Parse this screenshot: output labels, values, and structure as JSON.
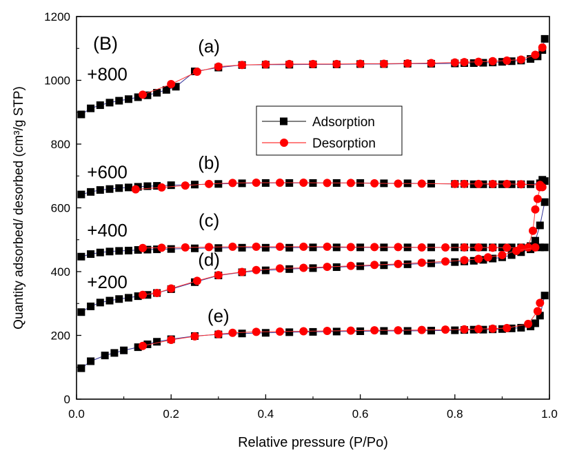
{
  "chart_data": {
    "type": "line",
    "panel_label": "(B)",
    "xlabel": "Relative pressure (P/Po)",
    "ylabel": "Quantity adsorbed/ desorbed (cm³/g STP)",
    "xlim": [
      0.0,
      1.0
    ],
    "ylim": [
      0,
      1200
    ],
    "xticks": [
      "0.0",
      "0.2",
      "0.4",
      "0.6",
      "0.8",
      "1.0"
    ],
    "xtick_values": [
      0.0,
      0.2,
      0.4,
      0.6,
      0.8,
      1.0
    ],
    "yticks": [
      "0",
      "200",
      "400",
      "600",
      "800",
      "1000",
      "1200"
    ],
    "ytick_values": [
      0,
      200,
      400,
      600,
      800,
      1000,
      1200
    ],
    "grid": false,
    "legend": {
      "placement": "center",
      "entries": [
        {
          "label": "Adsorption",
          "color": "#000000",
          "marker": "square"
        },
        {
          "label": "Desorption",
          "color": "#ff0000",
          "marker": "circle"
        }
      ]
    },
    "annotations": [
      {
        "text": "(a)",
        "x": 0.28,
        "y": 1088
      },
      {
        "text": "(b)",
        "x": 0.28,
        "y": 722
      },
      {
        "text": "(c)",
        "x": 0.28,
        "y": 542
      },
      {
        "text": "(d)",
        "x": 0.28,
        "y": 418
      },
      {
        "text": "(e)",
        "x": 0.3,
        "y": 242
      },
      {
        "text": "+800",
        "x": 0.065,
        "y": 1000
      },
      {
        "text": "+600",
        "x": 0.065,
        "y": 693
      },
      {
        "text": "+400",
        "x": 0.065,
        "y": 510
      },
      {
        "text": "+200",
        "x": 0.065,
        "y": 348
      }
    ],
    "series": [
      {
        "group": "(a)",
        "kind": "Adsorption",
        "x": [
          0.01,
          0.03,
          0.05,
          0.07,
          0.09,
          0.11,
          0.13,
          0.15,
          0.17,
          0.19,
          0.21,
          0.25,
          0.3,
          0.35,
          0.4,
          0.45,
          0.5,
          0.55,
          0.6,
          0.65,
          0.7,
          0.75,
          0.8,
          0.82,
          0.84,
          0.86,
          0.88,
          0.9,
          0.92,
          0.94,
          0.96,
          0.975,
          0.985,
          0.99
        ],
        "y": [
          893,
          912,
          922,
          930,
          936,
          941,
          947,
          953,
          961,
          970,
          980,
          1028,
          1040,
          1048,
          1049,
          1049,
          1050,
          1050,
          1051,
          1051,
          1052,
          1052,
          1053,
          1054,
          1054,
          1055,
          1056,
          1058,
          1060,
          1062,
          1067,
          1075,
          1095,
          1130
        ]
      },
      {
        "group": "(a)",
        "kind": "Desorption",
        "x": [
          0.985,
          0.97,
          0.94,
          0.91,
          0.88,
          0.85,
          0.82,
          0.8,
          0.75,
          0.7,
          0.65,
          0.6,
          0.55,
          0.5,
          0.45,
          0.4,
          0.35,
          0.3,
          0.255,
          0.2,
          0.14
        ],
        "y": [
          1103,
          1080,
          1065,
          1062,
          1060,
          1058,
          1057,
          1056,
          1054,
          1053,
          1052,
          1052,
          1051,
          1051,
          1051,
          1050,
          1048,
          1043,
          1027,
          988,
          955
        ]
      },
      {
        "group": "(b)",
        "kind": "Adsorption",
        "x": [
          0.01,
          0.03,
          0.05,
          0.07,
          0.09,
          0.11,
          0.13,
          0.15,
          0.17,
          0.2,
          0.25,
          0.3,
          0.35,
          0.4,
          0.45,
          0.5,
          0.55,
          0.6,
          0.65,
          0.7,
          0.75,
          0.8,
          0.82,
          0.84,
          0.86,
          0.88,
          0.9,
          0.92,
          0.94,
          0.96,
          0.98,
          0.985,
          0.99
        ],
        "y": [
          642,
          650,
          656,
          659,
          662,
          664,
          666,
          668,
          669,
          671,
          673,
          675,
          677,
          678,
          678,
          678,
          678,
          678,
          677,
          677,
          676,
          675,
          675,
          674,
          674,
          674,
          674,
          674,
          674,
          674,
          677,
          688,
          684
        ]
      },
      {
        "group": "(b)",
        "kind": "Desorption",
        "x": [
          0.985,
          0.98,
          0.94,
          0.91,
          0.88,
          0.85,
          0.82,
          0.8,
          0.73,
          0.68,
          0.63,
          0.58,
          0.53,
          0.48,
          0.43,
          0.38,
          0.33,
          0.28,
          0.23,
          0.18,
          0.125
        ],
        "y": [
          665,
          672,
          674,
          675,
          675,
          675,
          675,
          675,
          676,
          676,
          677,
          678,
          678,
          679,
          679,
          679,
          678,
          675,
          670,
          664,
          658
        ]
      },
      {
        "group": "(c)",
        "kind": "Adsorption",
        "x": [
          0.01,
          0.03,
          0.05,
          0.07,
          0.09,
          0.11,
          0.13,
          0.15,
          0.17,
          0.2,
          0.25,
          0.3,
          0.35,
          0.4,
          0.45,
          0.5,
          0.55,
          0.6,
          0.65,
          0.7,
          0.75,
          0.8,
          0.82,
          0.84,
          0.86,
          0.88,
          0.9,
          0.92,
          0.94,
          0.96,
          0.97,
          0.98,
          0.99
        ],
        "y": [
          447,
          455,
          460,
          463,
          465,
          466,
          468,
          469,
          470,
          471,
          473,
          474,
          475,
          475,
          475,
          476,
          476,
          476,
          476,
          476,
          476,
          476,
          476,
          476,
          476,
          476,
          476,
          476,
          476,
          480,
          497,
          545,
          618
        ]
      },
      {
        "group": "(c)",
        "kind": "Desorption",
        "x": [
          0.98,
          0.975,
          0.97,
          0.965,
          0.955,
          0.94,
          0.91,
          0.88,
          0.85,
          0.82,
          0.78,
          0.73,
          0.68,
          0.63,
          0.58,
          0.53,
          0.48,
          0.43,
          0.38,
          0.33,
          0.28,
          0.23,
          0.18,
          0.14
        ],
        "y": [
          665,
          628,
          595,
          528,
          476,
          475,
          475,
          475,
          476,
          476,
          476,
          476,
          477,
          477,
          477,
          478,
          478,
          478,
          478,
          478,
          477,
          476,
          475,
          474
        ]
      },
      {
        "group": "(d)",
        "kind": "Adsorption",
        "x": [
          0.01,
          0.03,
          0.05,
          0.07,
          0.09,
          0.11,
          0.13,
          0.15,
          0.17,
          0.2,
          0.25,
          0.3,
          0.35,
          0.4,
          0.45,
          0.5,
          0.55,
          0.6,
          0.65,
          0.7,
          0.75,
          0.8,
          0.82,
          0.84,
          0.86,
          0.88,
          0.9,
          0.92,
          0.94,
          0.96,
          0.98,
          0.99
        ],
        "y": [
          273,
          291,
          303,
          309,
          314,
          318,
          323,
          327,
          333,
          345,
          367,
          388,
          398,
          404,
          408,
          411,
          414,
          417,
          420,
          423,
          426,
          430,
          432,
          434,
          437,
          441,
          445,
          452,
          461,
          470,
          476,
          476
        ]
      },
      {
        "group": "(d)",
        "kind": "Desorption",
        "x": [
          0.97,
          0.93,
          0.9,
          0.87,
          0.85,
          0.82,
          0.78,
          0.73,
          0.68,
          0.63,
          0.58,
          0.53,
          0.48,
          0.43,
          0.38,
          0.35,
          0.3,
          0.255,
          0.2,
          0.17,
          0.14
        ],
        "y": [
          476,
          465,
          452,
          445,
          440,
          436,
          432,
          428,
          424,
          421,
          418,
          415,
          412,
          410,
          405,
          399,
          389,
          371,
          347,
          333,
          327
        ]
      },
      {
        "group": "(e)",
        "kind": "Adsorption",
        "x": [
          0.01,
          0.03,
          0.06,
          0.08,
          0.1,
          0.13,
          0.15,
          0.17,
          0.2,
          0.25,
          0.3,
          0.35,
          0.4,
          0.45,
          0.5,
          0.55,
          0.6,
          0.65,
          0.7,
          0.75,
          0.8,
          0.82,
          0.84,
          0.86,
          0.88,
          0.9,
          0.92,
          0.94,
          0.96,
          0.97,
          0.98,
          0.99
        ],
        "y": [
          97,
          119,
          137,
          145,
          153,
          163,
          172,
          180,
          188,
          198,
          203,
          206,
          208,
          210,
          211,
          212,
          213,
          214,
          214,
          215,
          216,
          217,
          218,
          218,
          219,
          220,
          222,
          224,
          228,
          238,
          262,
          325
        ]
      },
      {
        "group": "(e)",
        "kind": "Desorption",
        "x": [
          0.98,
          0.975,
          0.955,
          0.91,
          0.88,
          0.85,
          0.82,
          0.78,
          0.73,
          0.68,
          0.63,
          0.58,
          0.53,
          0.48,
          0.43,
          0.38,
          0.33,
          0.3,
          0.25,
          0.2,
          0.14
        ],
        "y": [
          302,
          276,
          236,
          223,
          221,
          220,
          219,
          218,
          217,
          216,
          216,
          215,
          214,
          213,
          212,
          211,
          208,
          204,
          197,
          186,
          167
        ]
      }
    ]
  }
}
